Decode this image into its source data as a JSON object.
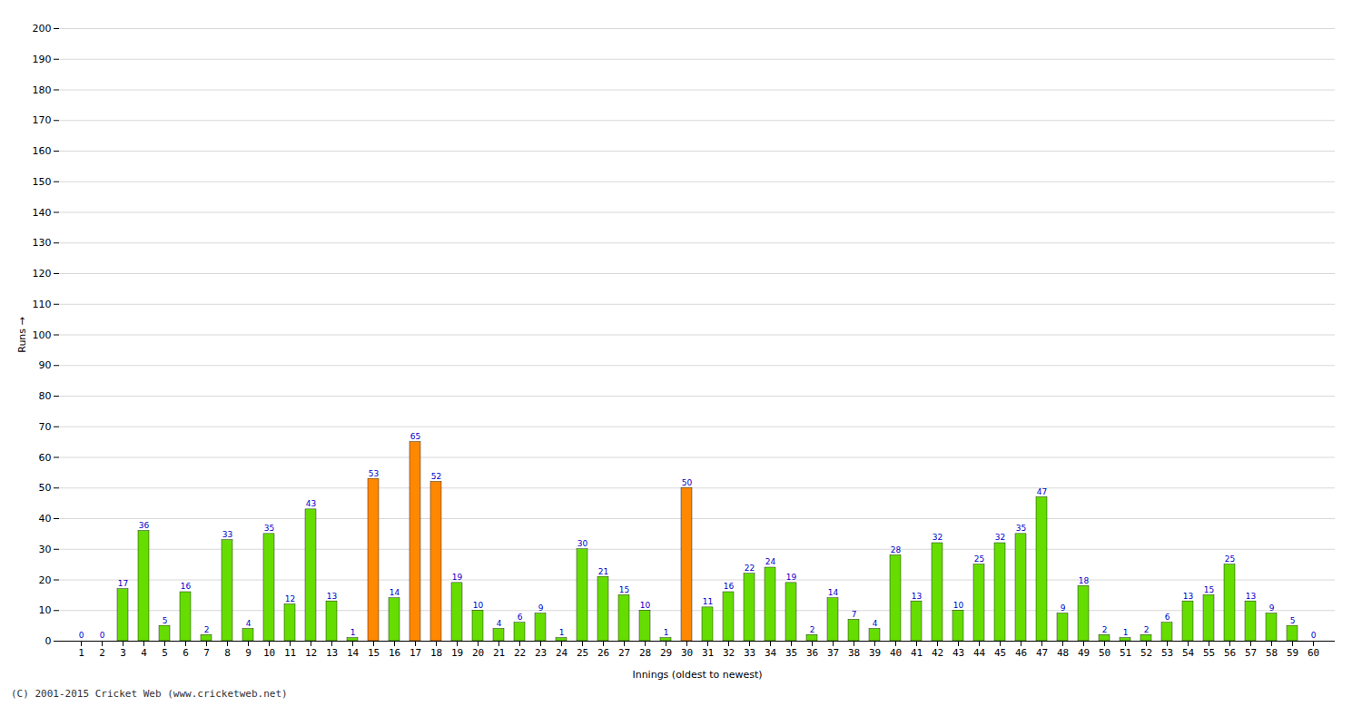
{
  "chart_data": {
    "type": "bar",
    "xlabel": "Innings (oldest to newest)",
    "ylabel": "Runs",
    "categories": [
      "1",
      "2",
      "3",
      "4",
      "5",
      "6",
      "7",
      "8",
      "9",
      "10",
      "11",
      "12",
      "13",
      "14",
      "15",
      "16",
      "17",
      "18",
      "19",
      "20",
      "21",
      "22",
      "23",
      "24",
      "25",
      "26",
      "27",
      "28",
      "29",
      "30",
      "31",
      "32",
      "33",
      "34",
      "35",
      "36",
      "37",
      "38",
      "39",
      "40",
      "41",
      "42",
      "43",
      "44",
      "45",
      "46",
      "47",
      "48",
      "49",
      "50",
      "51",
      "52",
      "53",
      "54",
      "55",
      "56",
      "57",
      "58",
      "59",
      "60"
    ],
    "values": [
      0,
      0,
      17,
      36,
      5,
      16,
      2,
      33,
      4,
      35,
      12,
      43,
      13,
      1,
      53,
      14,
      65,
      52,
      19,
      10,
      4,
      6,
      9,
      1,
      30,
      21,
      15,
      10,
      1,
      50,
      11,
      16,
      22,
      24,
      19,
      2,
      14,
      7,
      4,
      28,
      13,
      32,
      10,
      25,
      32,
      35,
      47,
      9,
      18,
      2,
      1,
      2,
      6,
      13,
      15,
      25,
      13,
      9,
      5,
      0
    ],
    "colors": [
      "#66dd00",
      "#66dd00",
      "#66dd00",
      "#66dd00",
      "#66dd00",
      "#66dd00",
      "#66dd00",
      "#66dd00",
      "#66dd00",
      "#66dd00",
      "#66dd00",
      "#66dd00",
      "#66dd00",
      "#66dd00",
      "#ff8800",
      "#66dd00",
      "#ff8800",
      "#ff8800",
      "#66dd00",
      "#66dd00",
      "#66dd00",
      "#66dd00",
      "#66dd00",
      "#66dd00",
      "#66dd00",
      "#66dd00",
      "#66dd00",
      "#66dd00",
      "#66dd00",
      "#ff8800",
      "#66dd00",
      "#66dd00",
      "#66dd00",
      "#66dd00",
      "#66dd00",
      "#66dd00",
      "#66dd00",
      "#66dd00",
      "#66dd00",
      "#66dd00",
      "#66dd00",
      "#66dd00",
      "#66dd00",
      "#66dd00",
      "#66dd00",
      "#66dd00",
      "#66dd00",
      "#66dd00",
      "#66dd00",
      "#66dd00",
      "#66dd00",
      "#66dd00",
      "#66dd00",
      "#66dd00",
      "#66dd00",
      "#66dd00",
      "#66dd00",
      "#66dd00",
      "#66dd00",
      "#66dd00"
    ],
    "ylim": [
      0,
      200
    ],
    "yticks": [
      0,
      10,
      20,
      30,
      40,
      50,
      60,
      70,
      80,
      90,
      100,
      110,
      120,
      130,
      140,
      150,
      160,
      170,
      180,
      190,
      200
    ],
    "grid": true,
    "data_labels": true,
    "annotations": [
      "(C) 2001-2015 Cricket Web (www.cricketweb.net)"
    ]
  }
}
